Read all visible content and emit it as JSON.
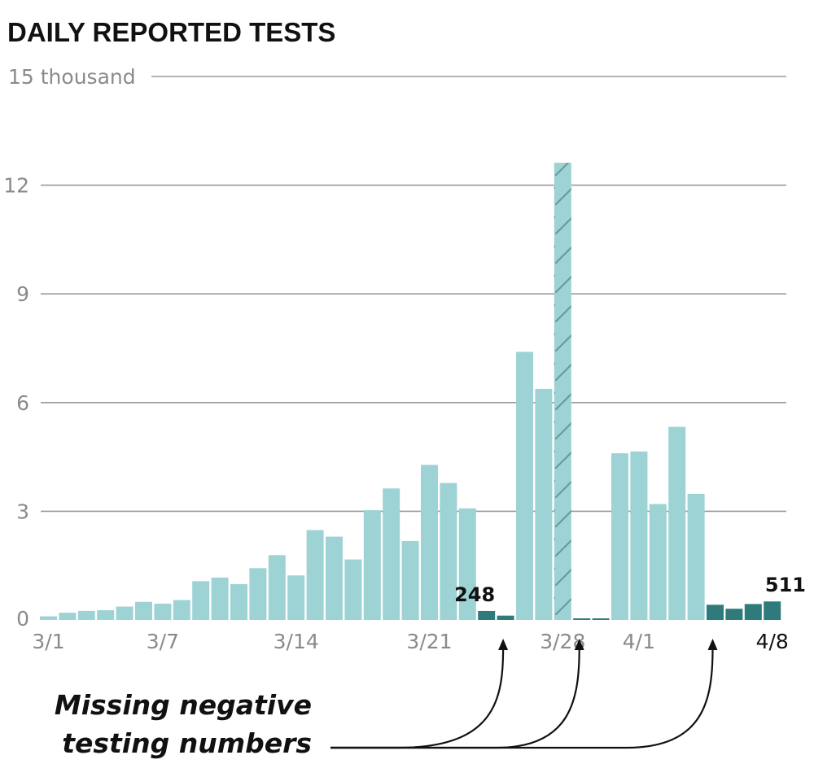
{
  "chart_data": {
    "type": "bar",
    "title": "DAILY REPORTED TESTS",
    "y_unit_label": "15 thousand",
    "ylim": [
      0,
      15
    ],
    "yticks": [
      {
        "value": 15,
        "label": "15 thousand"
      },
      {
        "value": 12,
        "label": "12"
      },
      {
        "value": 9,
        "label": "9"
      },
      {
        "value": 6,
        "label": "6"
      },
      {
        "value": 3,
        "label": "3"
      },
      {
        "value": 0,
        "label": "0"
      }
    ],
    "categories": [
      "3/1",
      "3/2",
      "3/3",
      "3/4",
      "3/5",
      "3/6",
      "3/7",
      "3/8",
      "3/9",
      "3/10",
      "3/11",
      "3/12",
      "3/13",
      "3/14",
      "3/15",
      "3/16",
      "3/17",
      "3/18",
      "3/19",
      "3/20",
      "3/21",
      "3/22",
      "3/23",
      "3/24",
      "3/25",
      "3/26",
      "3/27",
      "3/28",
      "3/29",
      "3/30",
      "3/31",
      "4/1",
      "4/2",
      "4/3",
      "4/4",
      "4/5",
      "4/6",
      "4/7",
      "4/8"
    ],
    "values": [
      0.1,
      0.2,
      0.25,
      0.27,
      0.37,
      0.5,
      0.45,
      0.55,
      1.07,
      1.17,
      0.99,
      1.43,
      1.79,
      1.23,
      2.48,
      2.3,
      1.67,
      3.03,
      3.63,
      2.18,
      4.28,
      3.78,
      3.08,
      0.248,
      0.12,
      7.4,
      6.38,
      12.62,
      0.03,
      0,
      4.6,
      4.65,
      3.2,
      5.33,
      3.48,
      0.42,
      0.31,
      0.44,
      0.511
    ],
    "bar_style": [
      "normal",
      "normal",
      "normal",
      "normal",
      "normal",
      "normal",
      "normal",
      "normal",
      "normal",
      "normal",
      "normal",
      "normal",
      "normal",
      "normal",
      "normal",
      "normal",
      "normal",
      "normal",
      "normal",
      "normal",
      "normal",
      "normal",
      "normal",
      "missing",
      "missing",
      "normal",
      "normal",
      "hatched",
      "missing",
      "missing",
      "normal",
      "normal",
      "normal",
      "normal",
      "normal",
      "missing",
      "missing",
      "missing",
      "missing"
    ],
    "xticks": [
      {
        "index": 0,
        "label": "3/1"
      },
      {
        "index": 6,
        "label": "3/7"
      },
      {
        "index": 13,
        "label": "3/14"
      },
      {
        "index": 20,
        "label": "3/21"
      },
      {
        "index": 27,
        "label": "3/28"
      },
      {
        "index": 31,
        "label": "4/1"
      },
      {
        "index": 38,
        "label": "4/8"
      }
    ],
    "bar_labels": [
      {
        "index": 23,
        "label": "248"
      },
      {
        "index": 38,
        "label": "511"
      }
    ],
    "annotation": {
      "lines": [
        "Missing negative",
        "testing numbers"
      ],
      "target_indices": [
        24,
        28,
        35
      ]
    },
    "colors": {
      "normal": "#9dd3d4",
      "missing": "#2f7b7c",
      "hatch": "#6a9a9b"
    }
  }
}
